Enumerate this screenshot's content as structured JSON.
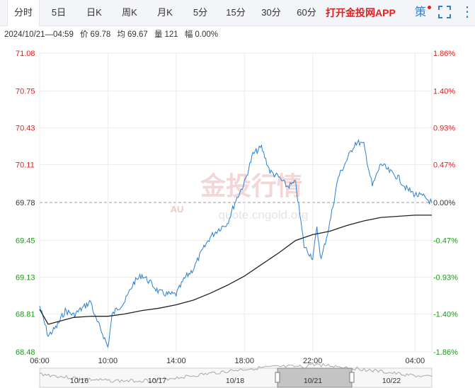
{
  "toolbar": {
    "tabs": [
      {
        "label": "分时",
        "active": true
      },
      {
        "label": "5日"
      },
      {
        "label": "日K"
      },
      {
        "label": "周K"
      },
      {
        "label": "月K"
      },
      {
        "label": "5分"
      },
      {
        "label": "15分"
      },
      {
        "label": "30分"
      },
      {
        "label": "60分"
      }
    ],
    "app_label": "打开金投网APP",
    "strategy_label": "策",
    "more_label": "⋮"
  },
  "info": {
    "datetime": "2024/10/21—04:59",
    "price_label": "价",
    "price": "69.78",
    "avg_label": "均",
    "avg": "69.67",
    "volume_label": "量",
    "volume": "121",
    "change_label": "幅",
    "change": "0.00%"
  },
  "watermark": {
    "cn": "金投行情",
    "url": "quote.cngold.org",
    "logo": "AU"
  },
  "colors": {
    "up": "#e02020",
    "down": "#1a9a1a",
    "line": "#2a7fd4",
    "avg": "#222222",
    "accent": "#2a7fd4"
  },
  "chart_data": {
    "type": "line",
    "base_price": 69.78,
    "y_ticks": [
      "71.08",
      "70.75",
      "70.43",
      "70.11",
      "69.78",
      "69.45",
      "69.13",
      "68.81",
      "68.48"
    ],
    "pct_ticks": [
      "1.86%",
      "1.40%",
      "0.93%",
      "0.47%",
      "0.00%",
      "-0.47%",
      "-0.93%",
      "-1.40%",
      "-1.86%"
    ],
    "x_ticks": [
      "06:00",
      "10:00",
      "14:00",
      "18:00",
      "22:00",
      "04:00"
    ],
    "ylim": [
      68.48,
      71.08
    ],
    "series": [
      {
        "key": "price",
        "x": [
          "06:00",
          "06:30",
          "07:00",
          "07:30",
          "08:00",
          "08:30",
          "09:00",
          "09:15",
          "09:30",
          "09:45",
          "10:00",
          "10:15",
          "10:30",
          "11:00",
          "11:30",
          "12:00",
          "12:30",
          "13:00",
          "13:30",
          "14:00",
          "14:30",
          "15:00",
          "15:30",
          "16:00",
          "16:30",
          "17:00",
          "17:30",
          "18:00",
          "18:30",
          "19:00",
          "19:30",
          "20:00",
          "20:30",
          "21:00",
          "21:30",
          "22:00",
          "22:15",
          "22:30",
          "23:00",
          "23:30",
          "00:00",
          "00:30",
          "00:45",
          "01:00",
          "01:30",
          "02:00",
          "02:30",
          "03:00",
          "03:30",
          "04:00",
          "04:30",
          "04:59"
        ],
        "values": [
          68.88,
          68.62,
          68.7,
          68.84,
          68.8,
          68.86,
          68.92,
          68.78,
          68.7,
          68.62,
          68.52,
          68.8,
          68.85,
          68.92,
          69.08,
          69.15,
          69.08,
          69.0,
          68.98,
          68.98,
          69.12,
          69.2,
          69.35,
          69.48,
          69.55,
          69.6,
          69.8,
          69.95,
          70.2,
          70.26,
          70.05,
          70.0,
          69.92,
          69.95,
          69.4,
          69.3,
          69.55,
          69.28,
          69.6,
          70.0,
          70.15,
          70.3,
          70.3,
          70.28,
          69.92,
          70.12,
          70.05,
          70.0,
          69.9,
          69.85,
          69.83,
          69.78
        ]
      },
      {
        "key": "average",
        "x": [
          "06:00",
          "06:30",
          "07:00",
          "08:00",
          "09:00",
          "10:00",
          "11:00",
          "12:00",
          "13:00",
          "14:00",
          "15:00",
          "16:00",
          "17:00",
          "18:00",
          "19:00",
          "20:00",
          "21:00",
          "22:00",
          "23:00",
          "00:00",
          "01:00",
          "02:00",
          "03:00",
          "04:00",
          "04:59"
        ],
        "values": [
          68.85,
          68.72,
          68.74,
          68.78,
          68.79,
          68.79,
          68.81,
          68.84,
          68.86,
          68.89,
          68.93,
          68.99,
          69.06,
          69.14,
          69.24,
          69.34,
          69.45,
          69.5,
          69.53,
          69.58,
          69.62,
          69.65,
          69.66,
          69.67,
          69.67
        ]
      }
    ],
    "navigator": {
      "labels": [
        "10/16",
        "10/17",
        "10/18",
        "10/21",
        "10/22"
      ]
    }
  }
}
